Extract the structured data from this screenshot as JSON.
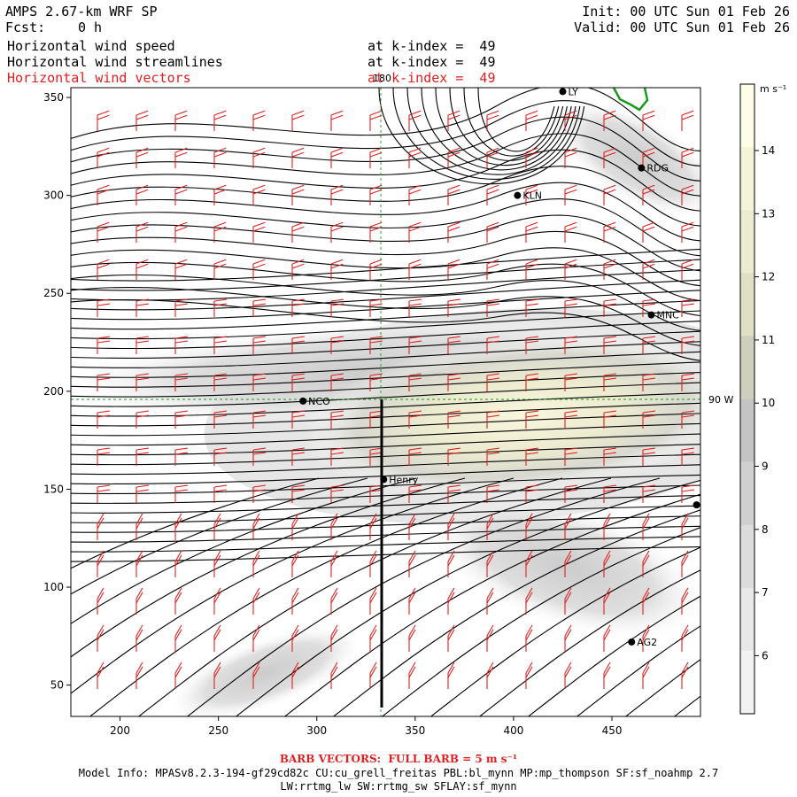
{
  "header": {
    "model": "AMPS 2.67-km WRF SP",
    "fcst_label": "Fcst:",
    "fcst_value": "0 h",
    "init": "Init: 00 UTC Sun 01 Feb 26",
    "valid": "Valid: 00 UTC Sun 01 Feb 26",
    "fields": [
      {
        "name": "Horizontal wind speed",
        "level": "at k-index =  49"
      },
      {
        "name": "Horizontal wind streamlines",
        "level": "at k-index =  49"
      },
      {
        "name": "Horizontal wind vectors",
        "level": "at k-index =  49"
      }
    ]
  },
  "map": {
    "x_ticks": [
      "200",
      "250",
      "300",
      "350",
      "400",
      "450"
    ],
    "y_ticks": [
      "350",
      "300",
      "250",
      "200",
      "150",
      "100",
      "50"
    ],
    "meridian_label": "180",
    "parallel_label": "90 W",
    "stations": [
      {
        "name": "LY",
        "x": 425,
        "y": 353
      },
      {
        "name": "RDG",
        "x": 465,
        "y": 314
      },
      {
        "name": "KLN",
        "x": 402,
        "y": 300
      },
      {
        "name": "MNC",
        "x": 470,
        "y": 239
      },
      {
        "name": "NCO",
        "x": 293,
        "y": 195
      },
      {
        "name": "Henry",
        "x": 334,
        "y": 155
      },
      {
        "name": "",
        "x": 493,
        "y": 142
      },
      {
        "name": "AG2",
        "x": 460,
        "y": 72
      }
    ]
  },
  "colorbar": {
    "unit": "m s⁻¹",
    "ticks": [
      "14",
      "13",
      "12",
      "11",
      "10",
      "9",
      "8",
      "7",
      "6"
    ],
    "colors": [
      "#fdfde8",
      "#f4f4d8",
      "#ececd0",
      "#e0e0c4",
      "#cfcfbe",
      "#c4c4c4",
      "#d0d0d0",
      "#dcdcdc",
      "#e8e8e8",
      "#f2f2f2"
    ]
  },
  "footer": {
    "barb_note": "BARB VECTORS:  FULL BARB = 5 m s⁻¹",
    "model_info_1": "Model Info: MPASv8.2.3-194-gf29cd82c CU:cu_grell_freitas PBL:bl_mynn MP:mp_thompson SF:sf_noahmp 2.7",
    "model_info_2": "LW:rrtmg_lw SW:rrtmg_sw SFLAY:sf_mynn"
  },
  "colors": {
    "barb": "#e02020",
    "streamline": "#000000",
    "coast": "#1a9a1a",
    "grid": "#1a9a1a"
  }
}
